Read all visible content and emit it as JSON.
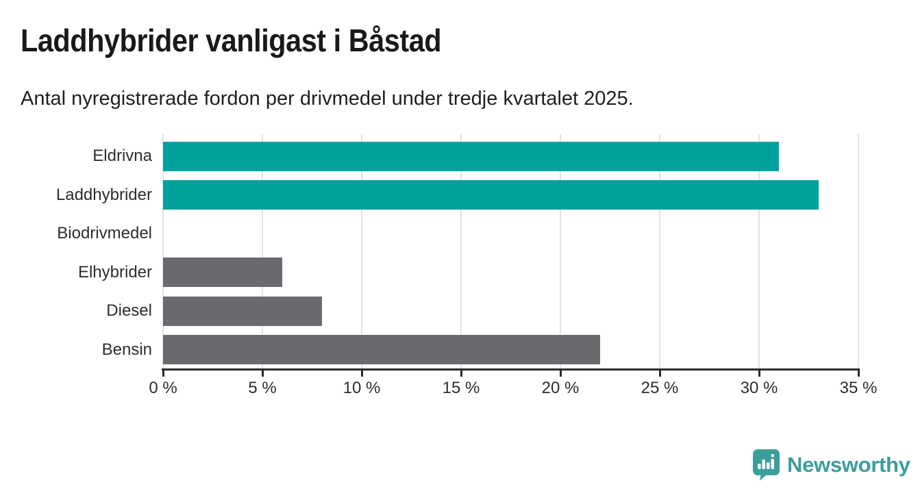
{
  "header": {
    "title": "Laddhybrider vanligast i Båstad",
    "subtitle": "Antal nyregistrerade fordon per drivmedel under tredje kvartalet 2025."
  },
  "chart_data": {
    "type": "bar",
    "orientation": "horizontal",
    "title": "Laddhybrider vanligast i Båstad",
    "subtitle": "Antal nyregistrerade fordon per drivmedel under tredje kvartalet 2025.",
    "categories": [
      "Eldrivna",
      "Laddhybrider",
      "Biodrivmedel",
      "Elhybrider",
      "Diesel",
      "Bensin"
    ],
    "values": [
      31,
      33,
      0,
      6,
      8,
      22
    ],
    "unit": "%",
    "bar_colors": [
      "#00a29b",
      "#00a29b",
      "#00a29b",
      "#6a6a6f",
      "#6a6a6f",
      "#6a6a6f"
    ],
    "xlabel": "",
    "ylabel": "",
    "xlim": [
      0,
      35
    ],
    "x_ticks": [
      0,
      5,
      10,
      15,
      20,
      25,
      30,
      35
    ],
    "x_tick_labels": [
      "0 %",
      "5 %",
      "10 %",
      "15 %",
      "20 %",
      "25 %",
      "30 %",
      "35 %"
    ],
    "grid": "vertical-light",
    "legend": "none"
  },
  "colors": {
    "highlight_teal": "#00a29b",
    "neutral_gray": "#6a6a6f",
    "axis": "#2b2b2b",
    "gridline": "#e3e3e3",
    "brand_teal": "#3b9e9b"
  },
  "footer": {
    "brand": "Newsworthy",
    "logo_icon": "speech-bubble-bar-chart-icon"
  }
}
